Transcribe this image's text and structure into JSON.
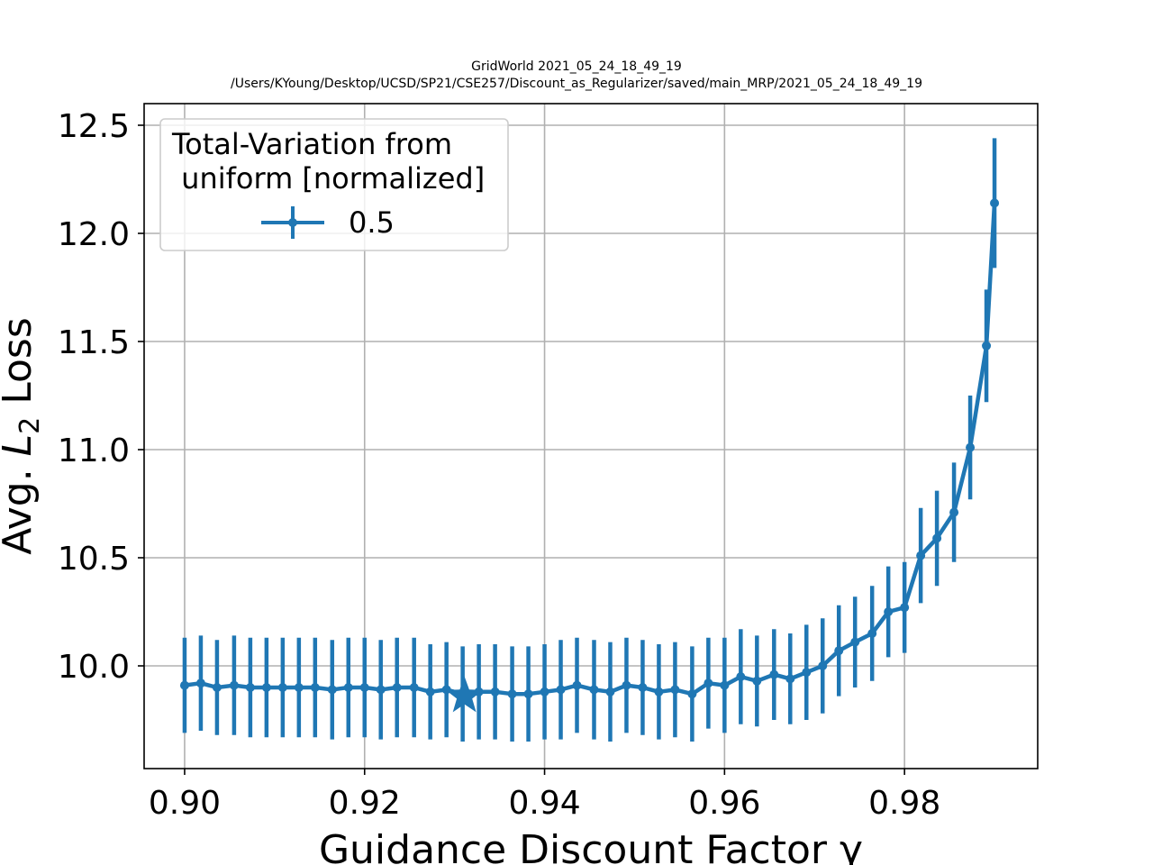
{
  "title_line1": "GridWorld  2021_05_24_18_49_19",
  "title_line2": "/Users/KYoung/Desktop/UCSD/SP21/CSE257/Discount_as_Regularizer/saved/main_MRP/2021_05_24_18_49_19",
  "colors": {
    "series": "#1f77b4",
    "grid": "#b0b0b0",
    "axes": "#000000"
  },
  "chart_data": {
    "type": "line",
    "title": "GridWorld  2021_05_24_18_49_19\n/Users/KYoung/Desktop/UCSD/SP21/CSE257/Discount_as_Regularizer/saved/main_MRP/2021_05_24_18_49_19",
    "xlabel": "Guidance Discount Factor γ",
    "ylabel_prefix": "Avg. ",
    "ylabel_math": "L",
    "ylabel_subscript": "2",
    "ylabel_suffix": " Loss",
    "xlim": [
      0.8955,
      0.9948
    ],
    "ylim": [
      9.525,
      12.6
    ],
    "grid": true,
    "x_ticks": [
      0.9,
      0.92,
      0.94,
      0.96,
      0.98
    ],
    "x_tick_labels": [
      "0.90",
      "0.92",
      "0.94",
      "0.96",
      "0.98"
    ],
    "y_ticks": [
      10.0,
      10.5,
      11.0,
      11.5,
      12.0,
      12.5
    ],
    "y_tick_labels": [
      "10.0",
      "10.5",
      "11.0",
      "11.5",
      "12.0",
      "12.5"
    ],
    "legend": {
      "title_line1": "Total-Variation from",
      "title_line2": " uniform [normalized]",
      "placement": "upper left",
      "entries": [
        "0.5"
      ]
    },
    "series": [
      {
        "name": "0.5",
        "marker": "o",
        "errorbars": true,
        "x": [
          0.9,
          0.9018,
          0.9036,
          0.9055,
          0.9073,
          0.9091,
          0.9109,
          0.9127,
          0.9145,
          0.9164,
          0.9182,
          0.92,
          0.9218,
          0.9236,
          0.9255,
          0.9273,
          0.9291,
          0.9309,
          0.9327,
          0.9345,
          0.9364,
          0.9382,
          0.94,
          0.9418,
          0.9436,
          0.9455,
          0.9473,
          0.9491,
          0.9509,
          0.9527,
          0.9545,
          0.9564,
          0.9582,
          0.96,
          0.9618,
          0.9636,
          0.9655,
          0.9673,
          0.9691,
          0.9709,
          0.9727,
          0.9745,
          0.9764,
          0.9782,
          0.98,
          0.9818,
          0.9836,
          0.9855,
          0.9873,
          0.9891,
          0.99
        ],
        "y": [
          9.91,
          9.92,
          9.9,
          9.91,
          9.9,
          9.9,
          9.9,
          9.9,
          9.9,
          9.89,
          9.9,
          9.9,
          9.89,
          9.9,
          9.9,
          9.88,
          9.89,
          9.87,
          9.88,
          9.88,
          9.87,
          9.87,
          9.88,
          9.89,
          9.91,
          9.89,
          9.88,
          9.91,
          9.9,
          9.88,
          9.89,
          9.87,
          9.92,
          9.91,
          9.95,
          9.93,
          9.96,
          9.94,
          9.97,
          10.0,
          10.07,
          10.11,
          10.15,
          10.25,
          10.27,
          10.51,
          10.59,
          10.71,
          11.01,
          11.48,
          12.14
        ],
        "yerr": [
          0.22,
          0.22,
          0.22,
          0.23,
          0.23,
          0.23,
          0.23,
          0.23,
          0.23,
          0.23,
          0.23,
          0.23,
          0.23,
          0.23,
          0.23,
          0.22,
          0.22,
          0.22,
          0.22,
          0.22,
          0.22,
          0.22,
          0.22,
          0.23,
          0.22,
          0.23,
          0.23,
          0.22,
          0.22,
          0.22,
          0.22,
          0.22,
          0.21,
          0.22,
          0.22,
          0.21,
          0.21,
          0.21,
          0.22,
          0.22,
          0.21,
          0.21,
          0.22,
          0.21,
          0.21,
          0.22,
          0.22,
          0.23,
          0.24,
          0.26,
          0.3
        ]
      }
    ],
    "star_marker": {
      "x": 0.9311,
      "y": 9.86
    }
  }
}
